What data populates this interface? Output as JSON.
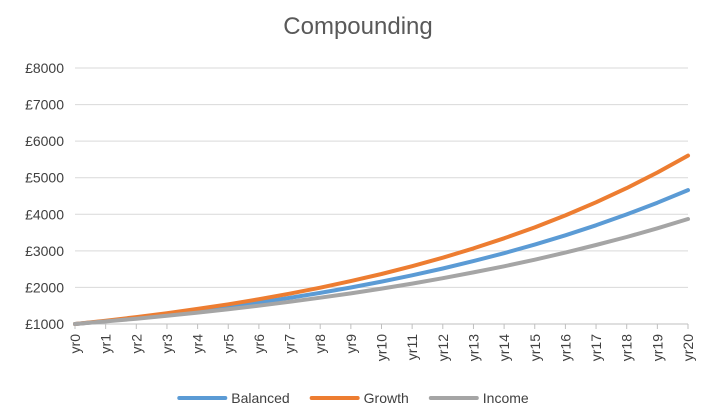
{
  "chart_data": {
    "type": "line",
    "title": "Compounding",
    "xlabel": "",
    "ylabel": "",
    "categories": [
      "yr0",
      "yr1",
      "yr2",
      "yr3",
      "yr4",
      "yr5",
      "yr6",
      "yr7",
      "yr8",
      "yr9",
      "yr10",
      "yr11",
      "yr12",
      "yr13",
      "yr14",
      "yr15",
      "yr16",
      "yr17",
      "yr18",
      "yr19",
      "yr20"
    ],
    "ylim": [
      1000,
      8000
    ],
    "yticks": [
      1000,
      2000,
      3000,
      4000,
      5000,
      6000,
      7000,
      8000
    ],
    "ytick_labels": [
      "£1000",
      "£2000",
      "£3000",
      "£4000",
      "£5000",
      "£6000",
      "£7000",
      "£8000"
    ],
    "grid": true,
    "legend": "bottom",
    "series": [
      {
        "name": "Balanced",
        "color": "#5B9BD5",
        "values": [
          1000,
          1080,
          1166,
          1260,
          1360,
          1469,
          1587,
          1714,
          1851,
          1999,
          2159,
          2332,
          2518,
          2720,
          2937,
          3172,
          3426,
          3700,
          3996,
          4316,
          4661
        ]
      },
      {
        "name": "Growth",
        "color": "#ED7D31",
        "values": [
          1000,
          1090,
          1188,
          1295,
          1412,
          1539,
          1677,
          1828,
          1993,
          2172,
          2367,
          2580,
          2813,
          3066,
          3342,
          3642,
          3970,
          4328,
          4717,
          5142,
          5604
        ]
      },
      {
        "name": "Income",
        "color": "#A5A5A5",
        "values": [
          1000,
          1070,
          1145,
          1225,
          1311,
          1403,
          1501,
          1606,
          1718,
          1838,
          1967,
          2105,
          2252,
          2410,
          2579,
          2759,
          2952,
          3159,
          3380,
          3617,
          3870
        ]
      }
    ]
  }
}
